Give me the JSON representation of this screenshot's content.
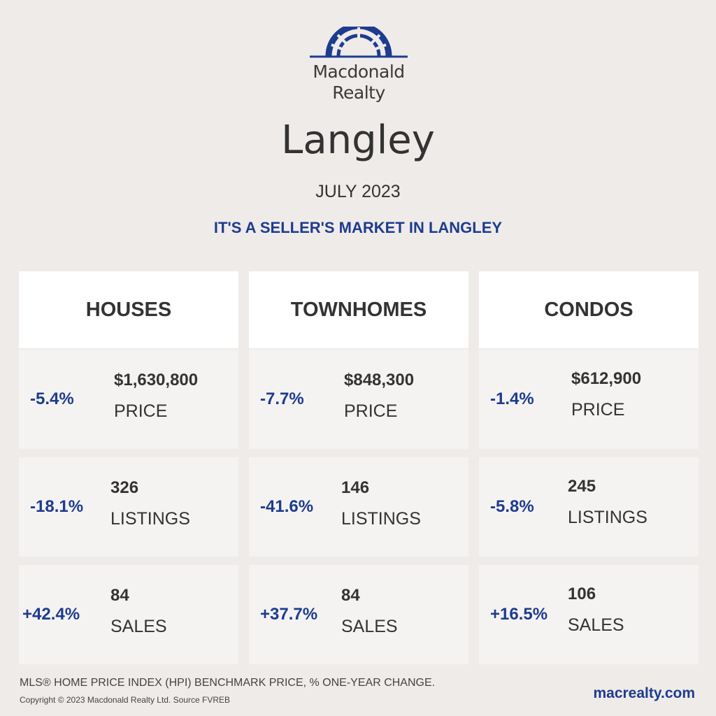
{
  "brand": {
    "line1": "Macdonald",
    "line2": "Realty",
    "color": "#1d3c8f"
  },
  "city": "Langley",
  "period": "JULY 2023",
  "tagline": "IT'S A SELLER'S MARKET IN LANGLEY",
  "columns": [
    {
      "title": "HOUSES",
      "stats": [
        {
          "change": "-5.4%",
          "value": "$1,630,800",
          "label": "PRICE"
        },
        {
          "change": "-18.1%",
          "value": "326",
          "label": "LISTINGS"
        },
        {
          "change": "+42.4%",
          "value": "84",
          "label": "SALES"
        }
      ]
    },
    {
      "title": "TOWNHOMES",
      "stats": [
        {
          "change": "-7.7%",
          "value": "$848,300",
          "label": "PRICE"
        },
        {
          "change": "-41.6%",
          "value": "146",
          "label": "LISTINGS"
        },
        {
          "change": "+37.7%",
          "value": "84",
          "label": "SALES"
        }
      ]
    },
    {
      "title": "CONDOS",
      "stats": [
        {
          "change": "-1.4%",
          "value": "$612,900",
          "label": "PRICE"
        },
        {
          "change": "-5.8%",
          "value": "245",
          "label": "LISTINGS"
        },
        {
          "change": "+16.5%",
          "value": "106",
          "label": "SALES"
        }
      ]
    }
  ],
  "footnote": "MLS® HOME PRICE INDEX (HPI) BENCHMARK PRICE, % ONE-YEAR CHANGE.",
  "copyright": "Copyright © 2023 Macdonald Realty Ltd. Source FVREB",
  "website": "macrealty.com",
  "colors": {
    "background": "#efebe9",
    "accent": "#1d3c8f",
    "header_bg": "#ffffff",
    "cell_bg": "#f5f3f2"
  }
}
